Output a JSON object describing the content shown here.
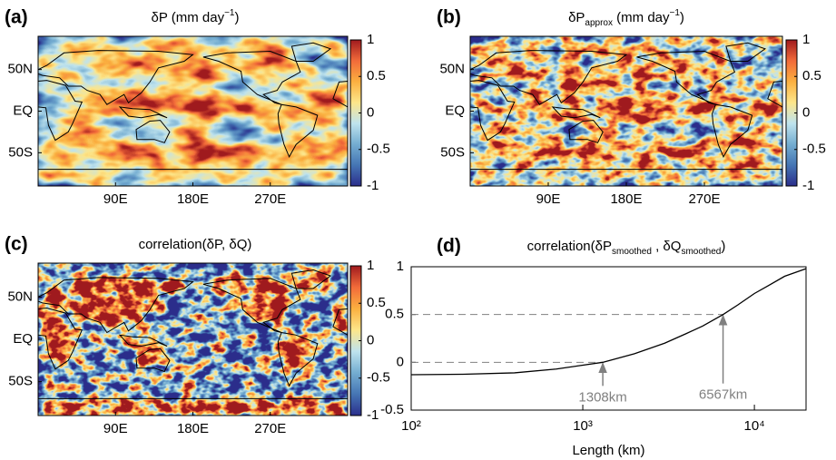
{
  "chart_data": [
    {
      "type": "map",
      "label": "(a)",
      "title": [
        {
          "text": "δP (mm day"
        },
        {
          "sup": "−1"
        },
        {
          "text": ")"
        }
      ],
      "xlim": [
        0,
        360
      ],
      "ylim": [
        -90,
        90
      ],
      "xticks": [
        {
          "value": 90,
          "label": "90E"
        },
        {
          "value": 180,
          "label": "180E"
        },
        {
          "value": 270,
          "label": "270E"
        }
      ],
      "yticks": [
        {
          "value": 50,
          "label": "50N"
        },
        {
          "value": 0,
          "label": "EQ"
        },
        {
          "value": -50,
          "label": "50S"
        }
      ],
      "clim": [
        -1,
        1
      ],
      "cticks": [
        -1,
        -0.5,
        0,
        0.5,
        1
      ],
      "colormap": [
        "#2b2e8c",
        "#4575b4",
        "#74add1",
        "#bfe3ee",
        "#fde68a",
        "#fbb040",
        "#f26b3a",
        "#a01a1e"
      ]
    },
    {
      "type": "map",
      "label": "(b)",
      "title": [
        {
          "text": "δP"
        },
        {
          "sub": "approx"
        },
        {
          "text": " (mm day"
        },
        {
          "sup": "−1"
        },
        {
          "text": ")"
        }
      ],
      "xlim": [
        0,
        360
      ],
      "ylim": [
        -90,
        90
      ],
      "xticks": [
        {
          "value": 90,
          "label": "90E"
        },
        {
          "value": 180,
          "label": "180E"
        },
        {
          "value": 270,
          "label": "270E"
        }
      ],
      "yticks": [
        {
          "value": 50,
          "label": "50N"
        },
        {
          "value": 0,
          "label": "EQ"
        },
        {
          "value": -50,
          "label": "50S"
        }
      ],
      "clim": [
        -1,
        1
      ],
      "cticks": [
        -1,
        -0.5,
        0,
        0.5,
        1
      ],
      "colormap": [
        "#2b2e8c",
        "#4575b4",
        "#74add1",
        "#bfe3ee",
        "#fde68a",
        "#fbb040",
        "#f26b3a",
        "#a01a1e"
      ]
    },
    {
      "type": "map",
      "label": "(c)",
      "title": [
        {
          "text": "correlation(δP, δQ)"
        }
      ],
      "xlim": [
        0,
        360
      ],
      "ylim": [
        -90,
        90
      ],
      "xticks": [
        {
          "value": 90,
          "label": "90E"
        },
        {
          "value": 180,
          "label": "180E"
        },
        {
          "value": 270,
          "label": "270E"
        }
      ],
      "yticks": [
        {
          "value": 50,
          "label": "50N"
        },
        {
          "value": 0,
          "label": "EQ"
        },
        {
          "value": -50,
          "label": "50S"
        }
      ],
      "clim": [
        -1,
        1
      ],
      "cticks": [
        -1,
        -0.5,
        0,
        0.5,
        1
      ],
      "colormap": [
        "#2b2e8c",
        "#4575b4",
        "#74add1",
        "#bfe3ee",
        "#fde68a",
        "#fbb040",
        "#f26b3a",
        "#a01a1e"
      ]
    },
    {
      "type": "line",
      "label": "(d)",
      "title": [
        {
          "text": "correlation(δP"
        },
        {
          "sub": "smoothed"
        },
        {
          "text": " , δQ"
        },
        {
          "sub": "smoothed"
        },
        {
          "text": ")"
        }
      ],
      "xlabel": "Length (km)",
      "xscale": "log",
      "xlim": [
        100,
        20000
      ],
      "ylim": [
        -0.5,
        1
      ],
      "xticks": [
        {
          "value": 100,
          "label": "10²"
        },
        {
          "value": 1000,
          "label": "10³"
        },
        {
          "value": 10000,
          "label": "10⁴"
        }
      ],
      "yticks": [
        -0.5,
        0,
        0.5,
        1
      ],
      "x": [
        100,
        200,
        400,
        700,
        1000,
        1308,
        2000,
        3000,
        4000,
        5000,
        6567,
        8000,
        10000,
        12000,
        15000,
        20000
      ],
      "series": [
        {
          "color": "#000000",
          "values": [
            -0.13,
            -0.125,
            -0.11,
            -0.07,
            -0.03,
            0,
            0.09,
            0.2,
            0.3,
            0.38,
            0.5,
            0.6,
            0.72,
            0.8,
            0.9,
            0.98
          ]
        }
      ],
      "annotations": [
        {
          "text": "1308km",
          "x": 1308,
          "y": 0
        },
        {
          "text": "6567km",
          "x": 6567,
          "y": 0.5
        }
      ],
      "annotation_color": "#808080"
    }
  ]
}
